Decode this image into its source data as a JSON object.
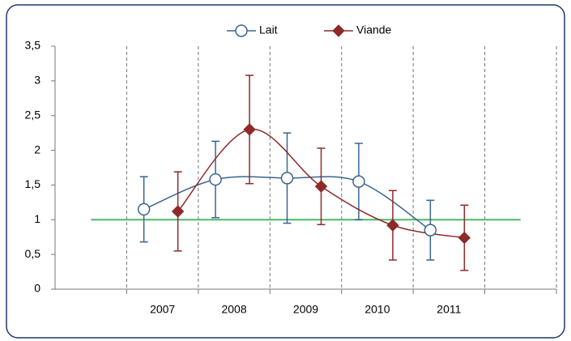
{
  "chart_data": {
    "type": "line",
    "categories": [
      null,
      "2007",
      "2008",
      "2009",
      "2010",
      "2011",
      null
    ],
    "series": [
      {
        "name": "Lait",
        "color": "#3a6491",
        "marker": "circle",
        "values": [
          null,
          1.15,
          1.58,
          1.6,
          1.55,
          0.85,
          null
        ],
        "errors": [
          null,
          0.47,
          0.55,
          0.65,
          0.55,
          0.43,
          null
        ]
      },
      {
        "name": "Viande",
        "color": "#8e2a2a",
        "marker": "diamond",
        "values": [
          null,
          1.12,
          2.3,
          1.48,
          0.92,
          0.74,
          null
        ],
        "errors": [
          null,
          0.57,
          0.78,
          0.55,
          0.5,
          0.47,
          null
        ]
      }
    ],
    "reference_line": {
      "value": 1,
      "color": "#4cb86a"
    },
    "ylim": [
      0,
      3.5
    ],
    "yticks": [
      0,
      {
        "value": 0.5,
        "label": "0,5"
      },
      1,
      {
        "value": 1.5,
        "label": "1,5"
      },
      2,
      {
        "value": 2.5,
        "label": "2,5"
      },
      3,
      {
        "value": 3.5,
        "label": "3,5"
      }
    ],
    "grid": true,
    "legend": "top"
  }
}
